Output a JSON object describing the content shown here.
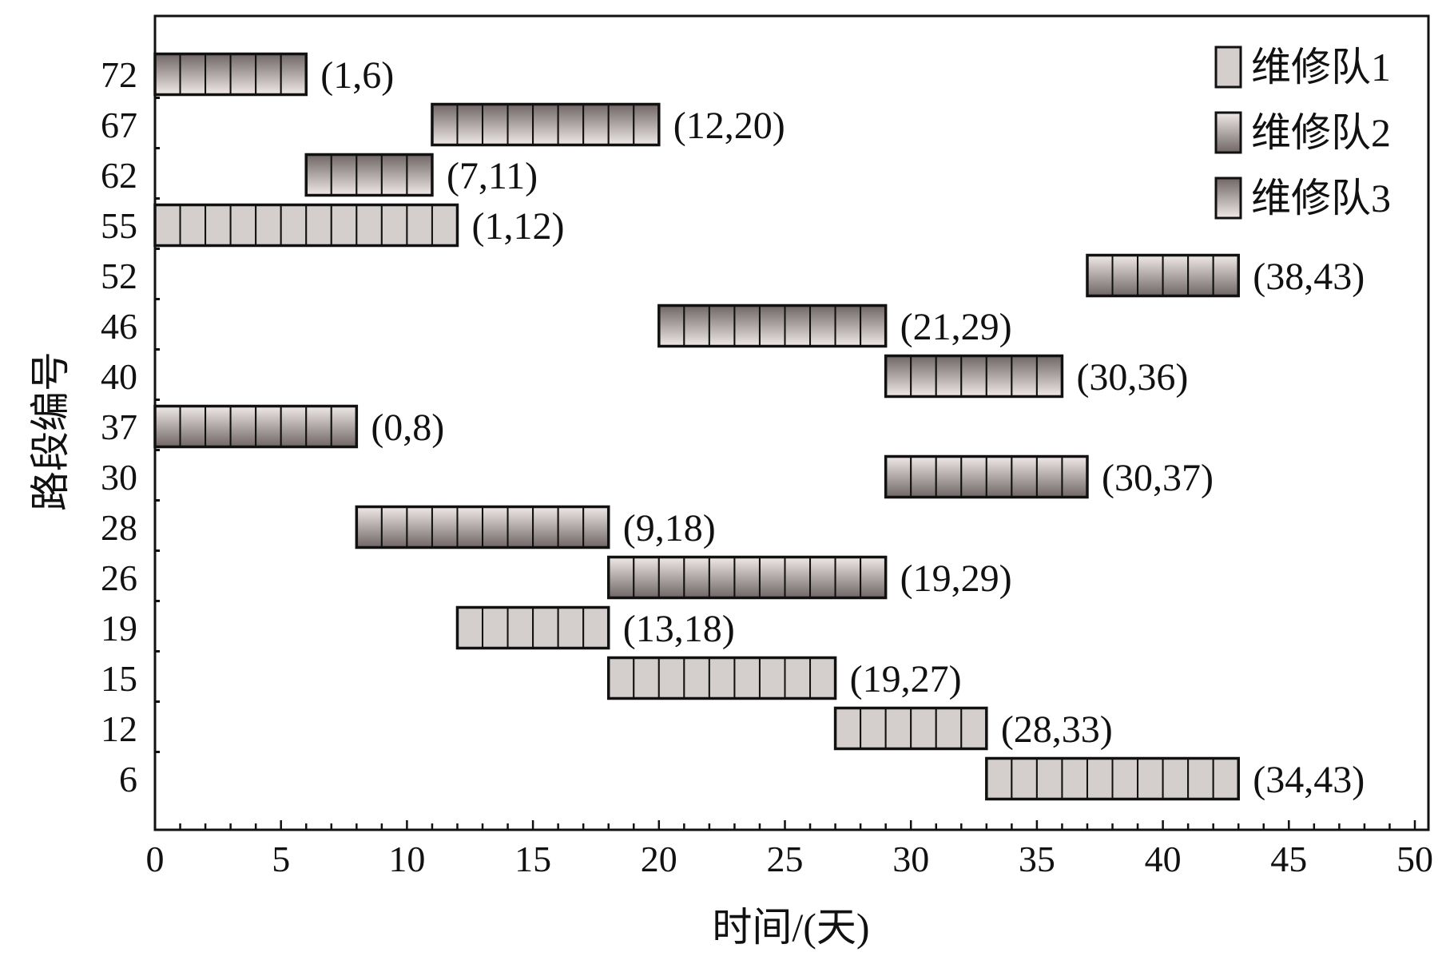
{
  "chart_data": {
    "type": "gantt",
    "xlabel": "时间/(天)",
    "ylabel": "路段编号",
    "xlim": [
      0,
      50
    ],
    "xticks": [
      0,
      5,
      10,
      15,
      20,
      25,
      30,
      35,
      40,
      45,
      50
    ],
    "categories": [
      "72",
      "67",
      "62",
      "55",
      "52",
      "46",
      "40",
      "37",
      "30",
      "28",
      "26",
      "19",
      "15",
      "12",
      "6"
    ],
    "legend_position": "top-right",
    "series": [
      {
        "name": "维修队1",
        "style": "flat-light",
        "colors": [
          "#d4cfcd",
          "#d4cfcd"
        ]
      },
      {
        "name": "维修队2",
        "style": "gradient-light-to-dark",
        "colors": [
          "#efe9e7",
          "#6f6665"
        ]
      },
      {
        "name": "维修队3",
        "style": "gradient-dark-to-light",
        "colors": [
          "#6f6665",
          "#efe9e7"
        ]
      }
    ],
    "tasks": [
      {
        "segment": "72",
        "team": 3,
        "start": 1,
        "end": 6,
        "label": "(1,6)"
      },
      {
        "segment": "67",
        "team": 3,
        "start": 12,
        "end": 20,
        "label": "(12,20)"
      },
      {
        "segment": "62",
        "team": 3,
        "start": 7,
        "end": 11,
        "label": "(7,11)"
      },
      {
        "segment": "55",
        "team": 1,
        "start": 1,
        "end": 12,
        "label": "(1,12)"
      },
      {
        "segment": "52",
        "team": 2,
        "start": 38,
        "end": 43,
        "label": "(38,43)"
      },
      {
        "segment": "46",
        "team": 3,
        "start": 21,
        "end": 29,
        "label": "(21,29)"
      },
      {
        "segment": "40",
        "team": 3,
        "start": 30,
        "end": 36,
        "label": "(30,36)"
      },
      {
        "segment": "37",
        "team": 2,
        "start": 0,
        "end": 8,
        "label": "(0,8)"
      },
      {
        "segment": "30",
        "team": 2,
        "start": 30,
        "end": 37,
        "label": "(30,37)"
      },
      {
        "segment": "28",
        "team": 2,
        "start": 9,
        "end": 18,
        "label": "(9,18)"
      },
      {
        "segment": "26",
        "team": 2,
        "start": 19,
        "end": 29,
        "label": "(19,29)"
      },
      {
        "segment": "19",
        "team": 1,
        "start": 13,
        "end": 18,
        "label": "(13,18)"
      },
      {
        "segment": "15",
        "team": 1,
        "start": 19,
        "end": 27,
        "label": "(19,27)"
      },
      {
        "segment": "12",
        "team": 1,
        "start": 28,
        "end": 33,
        "label": "(28,33)"
      },
      {
        "segment": "6",
        "team": 1,
        "start": 34,
        "end": 43,
        "label": "(34,43)"
      }
    ]
  }
}
